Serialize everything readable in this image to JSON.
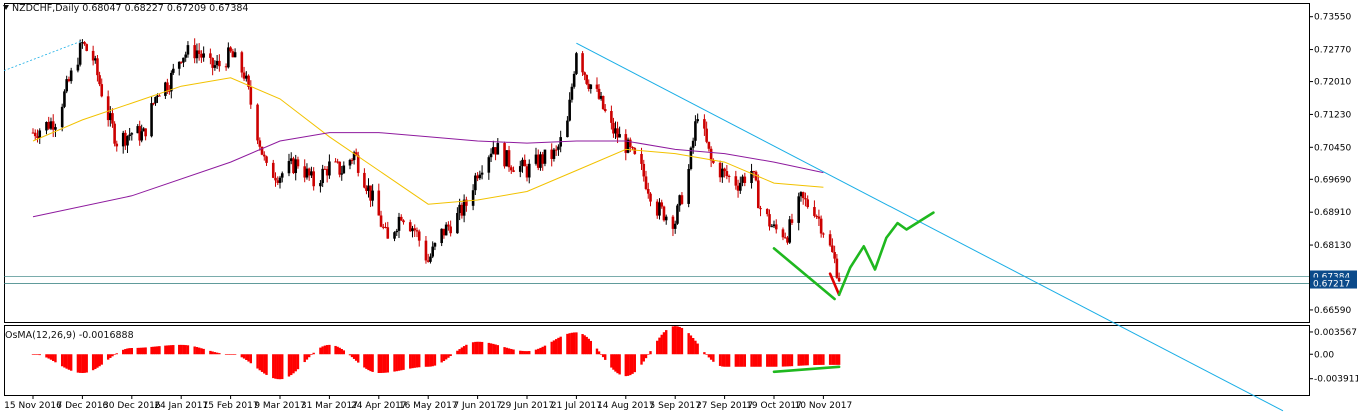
{
  "header": {
    "symbol": "NZDCHF,Daily",
    "ohlc": "0.68047 0.68227 0.67209 0.67384"
  },
  "oscillator": {
    "label": "OsMA(12,26,9) -0.0016888"
  },
  "colors": {
    "bull_candle": "#000000",
    "bear_candle": "#cc0000",
    "ma_fast": "#f2c200",
    "ma_slow": "#8e1a9e",
    "trendline": "#19aee6",
    "annotation_green": "#1fb81f",
    "annotation_red": "#e00000",
    "price_line": "#2b7a7a",
    "osma_bar": "#ff0000"
  },
  "chart_data": [
    {
      "type": "candlestick",
      "title": "NZDCHF,Daily",
      "y_axis_position": "right",
      "ylim": [
        0.6628,
        0.7378
      ],
      "yticks": [
        "0.73550",
        "0.72770",
        "0.72010",
        "0.71230",
        "0.70450",
        "0.69690",
        "0.68910",
        "0.68130",
        "0.66590"
      ],
      "yticks_values": [
        0.7355,
        0.7277,
        0.7201,
        0.7123,
        0.7045,
        0.6969,
        0.6891,
        0.6813,
        0.6659
      ],
      "price_labels": [
        "0.67384",
        "0.67217"
      ],
      "price_label_values": [
        0.67384,
        0.67217
      ],
      "x_axis_labels": [
        "15 Nov 2016",
        "7 Dec 2016",
        "30 Dec 2016",
        "24 Jan 2017",
        "15 Feb 2017",
        "9 Mar 2017",
        "31 Mar 2017",
        "24 Apr 2017",
        "16 May 2017",
        "7 Jun 2017",
        "29 Jun 2017",
        "21 Jul 2017",
        "14 Aug 2017",
        "5 Sep 2017",
        "27 Sep 2017",
        "19 Oct 2017",
        "10 Nov 2017"
      ],
      "close_path": [
        [
          "15 Nov 2016",
          0.708
        ],
        [
          "25 Nov 2016",
          0.711
        ],
        [
          "7 Dec 2016",
          0.729
        ],
        [
          "12 Dec 2016",
          0.7255
        ],
        [
          "19 Dec 2016",
          0.712
        ],
        [
          "23 Dec 2016",
          0.706
        ],
        [
          "30 Dec 2016",
          0.708
        ],
        [
          "5 Jan 2017",
          0.7075
        ],
        [
          "12 Jan 2017",
          0.718
        ],
        [
          "18 Jan 2017",
          0.72
        ],
        [
          "24 Jan 2017",
          0.7265
        ],
        [
          "31 Jan 2017",
          0.7275
        ],
        [
          "6 Feb 2017",
          0.7235
        ],
        [
          "10 Feb 2017",
          0.724
        ],
        [
          "15 Feb 2017",
          0.7265
        ],
        [
          "21 Feb 2017",
          0.722
        ],
        [
          "27 Feb 2017",
          0.708
        ],
        [
          "3 Mar 2017",
          0.699
        ],
        [
          "9 Mar 2017",
          0.698
        ],
        [
          "17 Mar 2017",
          0.701
        ],
        [
          "24 Mar 2017",
          0.696
        ],
        [
          "31 Mar 2017",
          0.7
        ],
        [
          "6 Apr 2017",
          0.699
        ],
        [
          "12 Apr 2017",
          0.703
        ],
        [
          "18 Apr 2017",
          0.696
        ],
        [
          "24 Apr 2017",
          0.688
        ],
        [
          "28 Apr 2017",
          0.682
        ],
        [
          "4 May 2017",
          0.689
        ],
        [
          "10 May 2017",
          0.685
        ],
        [
          "16 May 2017",
          0.6775
        ],
        [
          "22 May 2017",
          0.684
        ],
        [
          "29 May 2017",
          0.688
        ],
        [
          "2 Jun 2017",
          0.691
        ],
        [
          "7 Jun 2017",
          0.699
        ],
        [
          "14 Jun 2017",
          0.705
        ],
        [
          "21 Jun 2017",
          0.701
        ],
        [
          "29 Jun 2017",
          0.699
        ],
        [
          "5 Jul 2017",
          0.7015
        ],
        [
          "12 Jul 2017",
          0.703
        ],
        [
          "17 Jul 2017",
          0.71
        ],
        [
          "21 Jul 2017",
          0.728
        ],
        [
          "26 Jul 2017",
          0.721
        ],
        [
          "1 Aug 2017",
          0.716
        ],
        [
          "7 Aug 2017",
          0.709
        ],
        [
          "14 Aug 2017",
          0.705
        ],
        [
          "21 Aug 2017",
          0.699
        ],
        [
          "28 Aug 2017",
          0.69
        ],
        [
          "5 Sep 2017",
          0.687
        ],
        [
          "11 Sep 2017",
          0.699
        ],
        [
          "15 Sep 2017",
          0.713
        ],
        [
          "21 Sep 2017",
          0.701
        ],
        [
          "27 Sep 2017",
          0.698
        ],
        [
          "3 Oct 2017",
          0.696
        ],
        [
          "9 Oct 2017",
          0.699
        ],
        [
          "13 Oct 2017",
          0.69
        ],
        [
          "19 Oct 2017",
          0.685
        ],
        [
          "25 Oct 2017",
          0.684
        ],
        [
          "31 Oct 2017",
          0.692
        ],
        [
          "6 Nov 2017",
          0.69
        ],
        [
          "10 Nov 2017",
          0.685
        ],
        [
          "15 Nov 2017",
          0.6775
        ],
        [
          "17 Nov 2017",
          0.6738
        ]
      ],
      "series": [
        {
          "name": "",
          "kind": "moving-average-fast",
          "values": [
            [
              "15 Nov 2016",
              0.706
            ],
            [
              "7 Dec 2016",
              0.711
            ],
            [
              "30 Dec 2016",
              0.715
            ],
            [
              "24 Jan 2017",
              0.719
            ],
            [
              "15 Feb 2017",
              0.721
            ],
            [
              "9 Mar 2017",
              0.716
            ],
            [
              "31 Mar 2017",
              0.707
            ],
            [
              "24 Apr 2017",
              0.699
            ],
            [
              "16 May 2017",
              0.691
            ],
            [
              "7 Jun 2017",
              0.692
            ],
            [
              "29 Jun 2017",
              0.694
            ],
            [
              "21 Jul 2017",
              0.699
            ],
            [
              "14 Aug 2017",
              0.704
            ],
            [
              "5 Sep 2017",
              0.703
            ],
            [
              "27 Sep 2017",
              0.701
            ],
            [
              "19 Oct 2017",
              0.696
            ],
            [
              "10 Nov 2017",
              0.695
            ]
          ]
        },
        {
          "name": "",
          "kind": "moving-average-slow",
          "values": [
            [
              "15 Nov 2016",
              0.688
            ],
            [
              "30 Dec 2016",
              0.693
            ],
            [
              "15 Feb 2017",
              0.701
            ],
            [
              "9 Mar 2017",
              0.706
            ],
            [
              "31 Mar 2017",
              0.708
            ],
            [
              "24 Apr 2017",
              0.708
            ],
            [
              "16 May 2017",
              0.707
            ],
            [
              "7 Jun 2017",
              0.706
            ],
            [
              "29 Jun 2017",
              0.7055
            ],
            [
              "21 Jul 2017",
              0.706
            ],
            [
              "14 Aug 2017",
              0.706
            ],
            [
              "5 Sep 2017",
              0.704
            ],
            [
              "27 Sep 2017",
              0.703
            ],
            [
              "19 Oct 2017",
              0.701
            ],
            [
              "10 Nov 2017",
              0.6985
            ]
          ]
        }
      ],
      "trendline": [
        [
          "21 Jul 2017",
          0.7292
        ],
        [
          "10 Nov 2017",
          0.6987
        ]
      ],
      "annotations": [
        {
          "kind": "green-support-line",
          "points": [
            [
              "19 Oct 2017",
              0.6805
            ],
            [
              "15 Nov 2017",
              0.6685
            ]
          ]
        },
        {
          "kind": "red-dip",
          "points": [
            [
              "13 Nov 2017",
              0.6745
            ],
            [
              "17 Nov 2017",
              0.6695
            ]
          ]
        },
        {
          "kind": "green-projection",
          "points": [
            [
              "17 Nov 2017",
              0.6695
            ],
            [
              "22 Nov 2017",
              0.676
            ],
            [
              "28 Nov 2017",
              0.681
            ],
            [
              "3 Dec 2017",
              0.6755
            ],
            [
              "8 Dec 2017",
              0.683
            ],
            [
              "13 Dec 2017",
              0.6865
            ],
            [
              "17 Dec 2017",
              0.685
            ],
            [
              "23 Dec 2017",
              0.687
            ],
            [
              "29 Dec 2017",
              0.689
            ]
          ]
        }
      ]
    },
    {
      "type": "bar",
      "title": "OsMA(12,26,9) -0.0016888",
      "ylim": [
        -0.0062,
        0.0042
      ],
      "yticks": [
        "0.003567",
        "0.00",
        "-0.003911"
      ],
      "yticks_values": [
        0.003567,
        0.0,
        -0.003911
      ],
      "x": [
        "15 Nov 2016",
        "7 Dec 2016",
        "30 Dec 2016",
        "24 Jan 2017",
        "15 Feb 2017",
        "9 Mar 2017",
        "31 Mar 2017",
        "24 Apr 2017",
        "16 May 2017",
        "7 Jun 2017",
        "29 Jun 2017",
        "21 Jul 2017",
        "14 Aug 2017",
        "5 Sep 2017",
        "27 Sep 2017",
        "19 Oct 2017",
        "10 Nov 2017"
      ],
      "values": [
        0.0,
        -0.003,
        0.001,
        0.0015,
        0.0,
        -0.004,
        0.0015,
        -0.003,
        -0.002,
        0.002,
        0.0005,
        0.0035,
        -0.0035,
        0.0045,
        -0.002,
        -0.002,
        -0.0017
      ],
      "annotations": [
        {
          "kind": "green-divergence-line",
          "points": [
            [
              "19 Oct 2017",
              -0.0028
            ],
            [
              "17 Nov 2017",
              -0.002
            ]
          ]
        }
      ]
    }
  ]
}
